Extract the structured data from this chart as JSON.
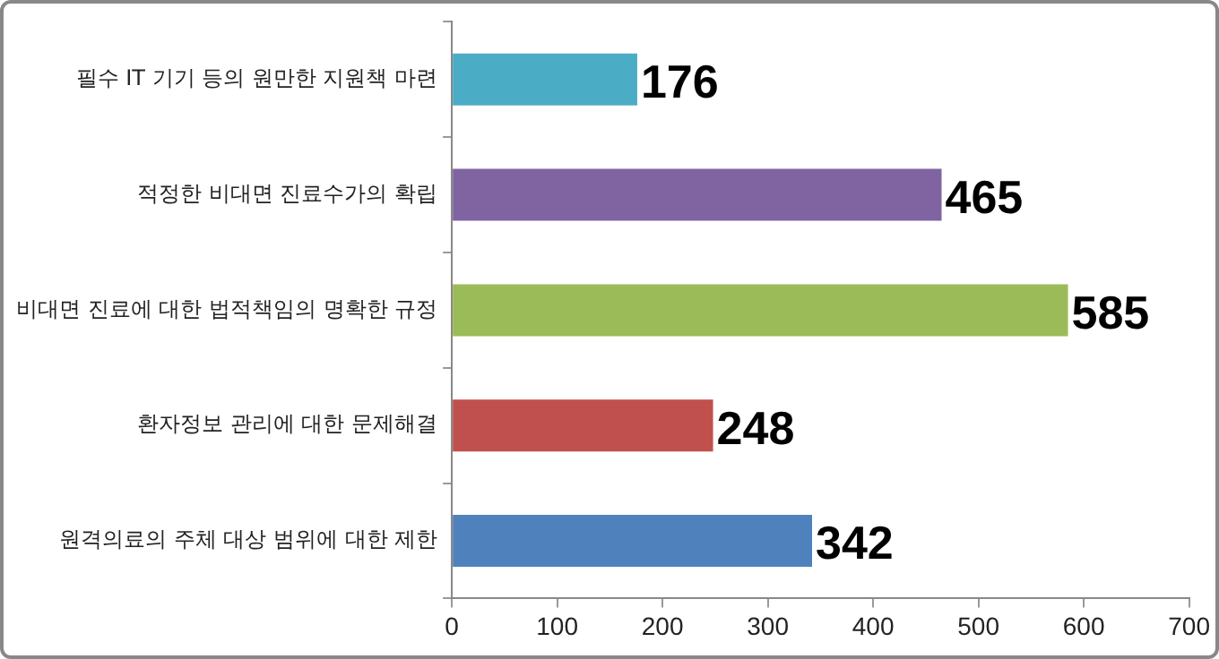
{
  "chart_data": {
    "type": "bar",
    "orientation": "horizontal",
    "categories": [
      "필수 IT 기기 등의 원만한 지원책 마련",
      "적정한 비대면 진료수가의 확립",
      "비대면 진료에 대한 법적책임의 명확한 규정",
      "환자정보 관리에 대한 문제해결",
      "원격의료의 주체 대상 범위에 대한 제한"
    ],
    "values": [
      176,
      465,
      585,
      248,
      342
    ],
    "colors": [
      "#4bacc6",
      "#8064a2",
      "#9bbb59",
      "#c0504d",
      "#4f81bd"
    ],
    "xlim": [
      0,
      700
    ],
    "xticks": [
      0,
      100,
      200,
      300,
      400,
      500,
      600,
      700
    ],
    "grid": false,
    "legend": false,
    "data_labels": true
  }
}
